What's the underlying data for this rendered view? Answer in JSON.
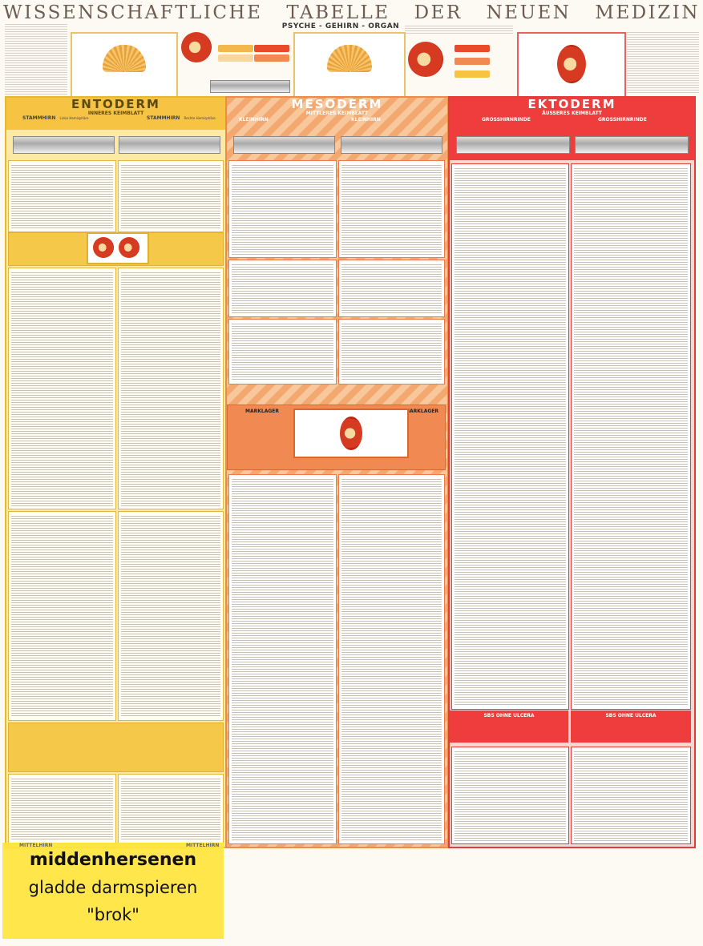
{
  "poster": {
    "title_words": [
      "WISSENSCHAFTLICHE",
      "TABELLE",
      "DER",
      "NEUEN",
      "MEDIZIN"
    ],
    "subtitle": "PSYCHE - GEHIRN - ORGAN"
  },
  "sections": {
    "entoderm": {
      "title": "ENTODERM",
      "subtitle": "INNERES KEIMBLATT",
      "left_col": "STAMMHIRN",
      "left_col_note": "Linke Hemisphäre",
      "right_col": "STAMMHIRN",
      "right_col_note": "Rechte Hemisphäre",
      "bottom_left": "MITTELHIRN",
      "bottom_right": "MITTELHIRN"
    },
    "mesoderm": {
      "title": "MESODERM",
      "subtitle": "MITTLERES KEIMBLATT",
      "left_col": "KLEINHIRN",
      "right_col": "KLEINHIRN",
      "mid_left": "MARKLAGER",
      "mid_right": "MARKLAGER"
    },
    "ektoderm": {
      "title": "EKTODERM",
      "subtitle": "ÄUSSERES KEIMBLATT",
      "left_col": "GROSSHIRNRINDE",
      "right_col": "GROSSHIRNRINDE",
      "sbs_left": "SBS OHNE ULCERA",
      "sbs_right": "SBS OHNE ULCERA"
    }
  },
  "highlight": {
    "line1": "middenhersenen",
    "line2": "gladde darmspieren",
    "line3": "\"brok\""
  },
  "colors": {
    "entoderm": "#f6c343",
    "mesoderm": "#f3a870",
    "ektoderm": "#e33c3c",
    "highlight": "#ffe43c"
  }
}
